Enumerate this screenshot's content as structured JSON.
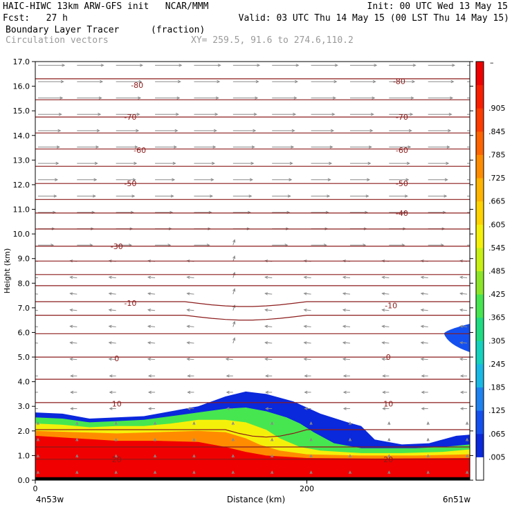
{
  "header": {
    "line1_left": "HAIC-HIWC 13km ARW-GFS init   NCAR/MMM",
    "line1_right": "Init: 00 UTC Wed 13 May 15",
    "line2_left": "Fcst:   27 h",
    "line2_right": "Valid: 03 UTC Thu 14 May 15 (00 LST Thu 14 May 15)",
    "field_name": "Boundary Layer Tracer",
    "field_units": "(fraction)",
    "vector_label": "Circulation vectors",
    "xy_label": "XY= 259.5, 91.6 to 274.6,110.2"
  },
  "chart_data": {
    "type": "heatmap",
    "title": "Boundary Layer Tracer",
    "ylabel": "Height (km)",
    "xlabel": "Distance (km)",
    "ylim": [
      0,
      17
    ],
    "xlim": [
      0,
      320
    ],
    "y_ticks": [
      "0.0",
      "1.0",
      "2.0",
      "3.0",
      "4.0",
      "5.0",
      "6.0",
      "7.0",
      "8.0",
      "9.0",
      "10.0",
      "11.0",
      "12.0",
      "13.0",
      "14.0",
      "15.0",
      "16.0",
      "17.0"
    ],
    "x_ticks": [
      {
        "value": 0,
        "label": "0"
      },
      {
        "value": 200,
        "label": "200"
      }
    ],
    "x_end_labels": {
      "left": "4n53w",
      "right": "6n51w"
    },
    "colorbar": {
      "labels": [
        ".005",
        ".065",
        ".125",
        ".185",
        ".245",
        ".305",
        ".365",
        ".425",
        ".485",
        ".545",
        ".605",
        ".665",
        ".725",
        ".785",
        ".845",
        ".905"
      ],
      "top_label": "–",
      "colors": [
        "#ffffff",
        "#0a28dc",
        "#1450f0",
        "#1e82f0",
        "#19b9e6",
        "#14d2be",
        "#1edc82",
        "#46e650",
        "#8ce628",
        "#c8f014",
        "#f5f00a",
        "#ffd200",
        "#ffb400",
        "#ff8c00",
        "#ff6400",
        "#ff3c00",
        "#fa1e00",
        "#f00000"
      ]
    },
    "tracer_bands": [
      {
        "level": 0.005,
        "top": [
          [
            0,
            2.75
          ],
          [
            20,
            2.7
          ],
          [
            40,
            2.5
          ],
          [
            60,
            2.55
          ],
          [
            80,
            2.6
          ],
          [
            100,
            2.8
          ],
          [
            120,
            3.0
          ],
          [
            140,
            3.4
          ],
          [
            155,
            3.6
          ],
          [
            170,
            3.5
          ],
          [
            190,
            3.2
          ],
          [
            210,
            2.7
          ],
          [
            230,
            2.35
          ],
          [
            240,
            2.2
          ],
          [
            250,
            1.65
          ],
          [
            270,
            1.45
          ],
          [
            290,
            1.5
          ],
          [
            310,
            1.8
          ],
          [
            320,
            1.85
          ]
        ]
      },
      {
        "level": 0.185,
        "top": [
          [
            0,
            2.55
          ],
          [
            20,
            2.5
          ],
          [
            40,
            2.35
          ],
          [
            60,
            2.4
          ],
          [
            80,
            2.45
          ],
          [
            100,
            2.6
          ],
          [
            120,
            2.75
          ],
          [
            140,
            2.9
          ],
          [
            155,
            2.95
          ],
          [
            170,
            2.8
          ],
          [
            185,
            2.55
          ],
          [
            195,
            2.3
          ],
          [
            205,
            1.95
          ],
          [
            220,
            1.5
          ],
          [
            240,
            1.3
          ],
          [
            260,
            1.3
          ],
          [
            280,
            1.3
          ],
          [
            300,
            1.35
          ],
          [
            320,
            1.45
          ]
        ]
      },
      {
        "level": 0.425,
        "top": [
          [
            0,
            2.3
          ],
          [
            20,
            2.25
          ],
          [
            40,
            2.15
          ],
          [
            60,
            2.2
          ],
          [
            80,
            2.2
          ],
          [
            100,
            2.3
          ],
          [
            120,
            2.45
          ],
          [
            140,
            2.45
          ],
          [
            155,
            2.35
          ],
          [
            170,
            2.05
          ],
          [
            180,
            1.7
          ],
          [
            195,
            1.35
          ],
          [
            210,
            1.2
          ],
          [
            240,
            1.1
          ],
          [
            270,
            1.1
          ],
          [
            300,
            1.15
          ],
          [
            320,
            1.25
          ]
        ]
      },
      {
        "level": 0.605,
        "top": [
          [
            0,
            2.0
          ],
          [
            30,
            1.95
          ],
          [
            60,
            1.9
          ],
          [
            90,
            1.95
          ],
          [
            120,
            2.0
          ],
          [
            140,
            1.95
          ],
          [
            155,
            1.7
          ],
          [
            165,
            1.45
          ],
          [
            180,
            1.2
          ],
          [
            200,
            1.05
          ],
          [
            240,
            1.0
          ],
          [
            280,
            1.0
          ],
          [
            320,
            1.05
          ]
        ]
      },
      {
        "level": 0.845,
        "top": [
          [
            0,
            1.8
          ],
          [
            30,
            1.7
          ],
          [
            60,
            1.6
          ],
          [
            90,
            1.6
          ],
          [
            120,
            1.55
          ],
          [
            140,
            1.35
          ],
          [
            155,
            1.15
          ],
          [
            170,
            1.0
          ],
          [
            200,
            0.9
          ],
          [
            250,
            0.88
          ],
          [
            320,
            0.9
          ]
        ]
      }
    ],
    "cloud_patch": {
      "level": 0.005,
      "region": "right edge, 5.3 to 6.3 km"
    },
    "contour_labels": [
      {
        "x": 75,
        "y": 16.05,
        "text": "-80"
      },
      {
        "x": 268,
        "y": 16.2,
        "text": "-80"
      },
      {
        "x": 70,
        "y": 14.75,
        "text": "-70"
      },
      {
        "x": 270,
        "y": 14.75,
        "text": "-70"
      },
      {
        "x": 77,
        "y": 13.4,
        "text": "-60"
      },
      {
        "x": 270,
        "y": 13.4,
        "text": "-60"
      },
      {
        "x": 70,
        "y": 12.05,
        "text": "-50"
      },
      {
        "x": 270,
        "y": 12.05,
        "text": "-50"
      },
      {
        "x": 270,
        "y": 10.85,
        "text": "-40"
      },
      {
        "x": 60,
        "y": 9.5,
        "text": "-30"
      },
      {
        "x": 70,
        "y": 7.2,
        "text": "-10"
      },
      {
        "x": 262,
        "y": 7.1,
        "text": "-10"
      },
      {
        "x": 60,
        "y": 4.95,
        "text": "0"
      },
      {
        "x": 260,
        "y": 5.0,
        "text": "0"
      },
      {
        "x": 60,
        "y": 3.1,
        "text": "10"
      },
      {
        "x": 260,
        "y": 3.1,
        "text": "10"
      },
      {
        "x": 60,
        "y": 0.85,
        "text": "20"
      },
      {
        "x": 260,
        "y": 0.85,
        "text": "20"
      }
    ]
  }
}
